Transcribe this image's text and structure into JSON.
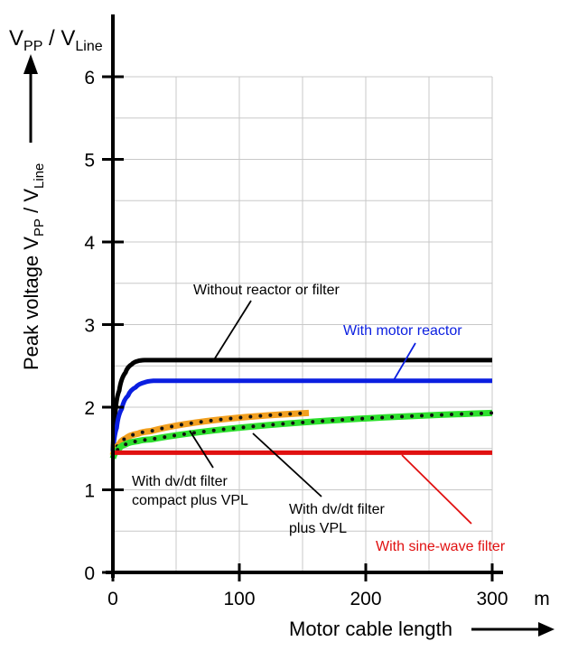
{
  "chart_data": {
    "type": "line",
    "title": "",
    "top_label": {
      "main1": "V",
      "sub1": "PP",
      "mid": " / V",
      "sub2": "Line"
    },
    "ylabel": {
      "main1": "Peak voltage V",
      "sub1": "PP",
      "mid": " / V",
      "sub2": "Line"
    },
    "xlabel": "Motor cable length",
    "x_unit": "m",
    "xlim": [
      0,
      300
    ],
    "ylim": [
      0,
      6
    ],
    "x_ticks": [
      "0",
      "100",
      "200",
      "300"
    ],
    "y_ticks": [
      "0",
      "1",
      "2",
      "3",
      "4",
      "5",
      "6"
    ],
    "grid": true,
    "series": [
      {
        "name": "Without reactor or filter",
        "color": "#000000",
        "dotted": false,
        "x": [
          0,
          2,
          5,
          10,
          15,
          20,
          25,
          300
        ],
        "y": [
          1.45,
          1.95,
          2.2,
          2.42,
          2.52,
          2.56,
          2.57,
          2.57
        ]
      },
      {
        "name": "With motor reactor",
        "color": "#0a1ee0",
        "dotted": false,
        "x": [
          0,
          3,
          7,
          12,
          18,
          25,
          32,
          35,
          300
        ],
        "y": [
          1.45,
          1.75,
          1.98,
          2.14,
          2.24,
          2.3,
          2.32,
          2.32,
          2.32
        ]
      },
      {
        "name": "With dv/dt filter compact plus VPL",
        "color": "#f2a020",
        "dotted": true,
        "x": [
          0,
          5,
          10,
          20,
          30,
          155
        ],
        "y": [
          1.42,
          1.55,
          1.62,
          1.68,
          1.71,
          1.93
        ]
      },
      {
        "name": "With dv/dt filter plus VPL",
        "color": "#2ee02e",
        "dotted": true,
        "x": [
          0,
          5,
          10,
          20,
          30,
          300
        ],
        "y": [
          1.38,
          1.5,
          1.55,
          1.59,
          1.61,
          1.93
        ]
      },
      {
        "name": "With sine-wave filter",
        "color": "#e01010",
        "dotted": false,
        "x": [
          0,
          300
        ],
        "y": [
          1.45,
          1.45
        ]
      }
    ],
    "annotations": [
      {
        "lines": [
          "Without reactor or filter"
        ],
        "color": "#000000"
      },
      {
        "lines": [
          "With motor reactor"
        ],
        "color": "#0a1ee0"
      },
      {
        "lines": [
          "With dv/dt filter",
          "compact plus VPL"
        ],
        "color": "#000000"
      },
      {
        "lines": [
          "With dv/dt filter",
          "plus VPL"
        ],
        "color": "#000000"
      },
      {
        "lines": [
          "With sine-wave filter"
        ],
        "color": "#e01010"
      }
    ]
  }
}
